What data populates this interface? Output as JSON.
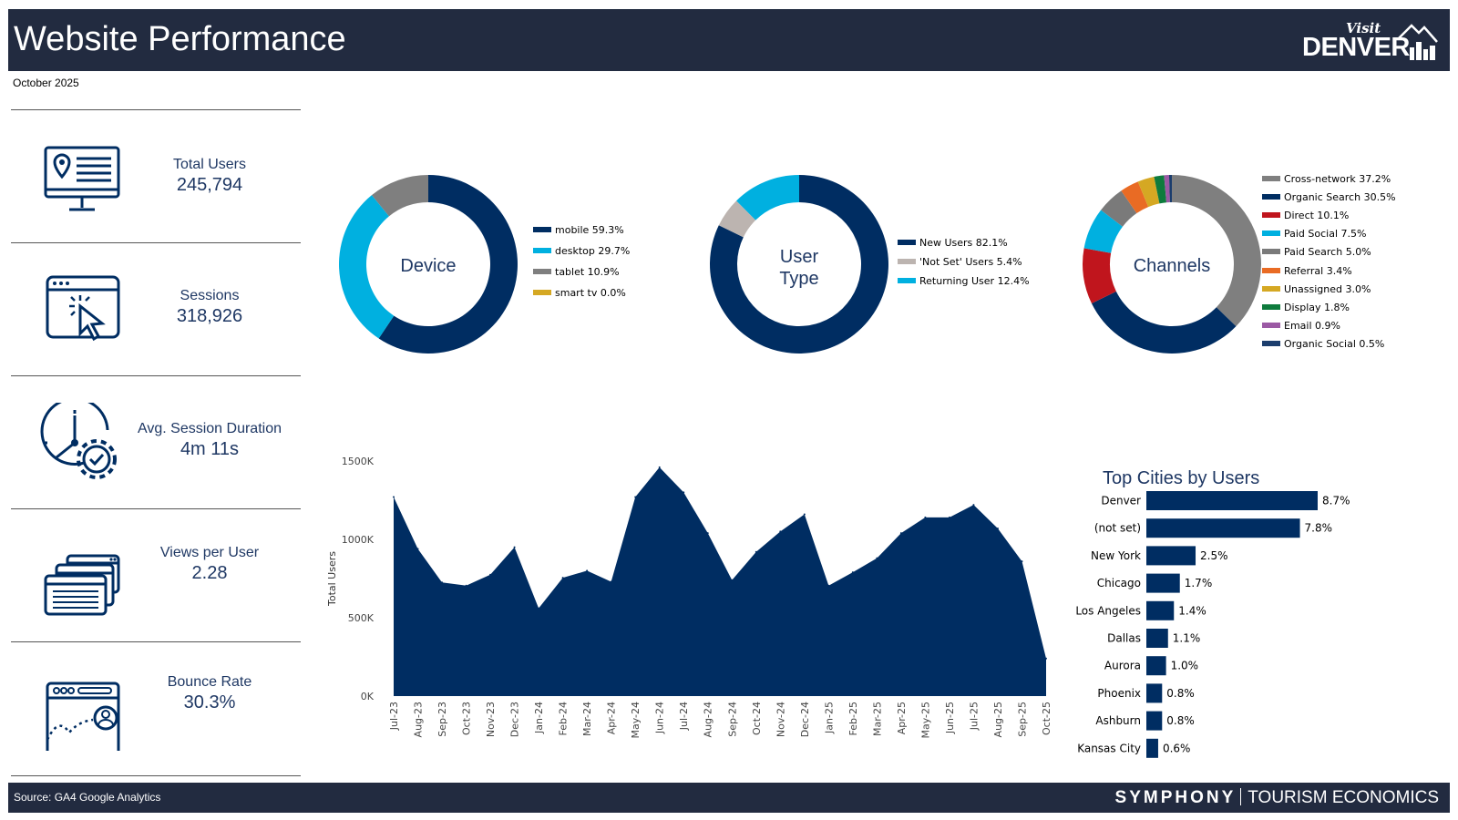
{
  "header": {
    "title": "Website Performance",
    "logo_top": "Visit",
    "logo_main": "DENVER"
  },
  "subtitle": "October 2025",
  "footer": {
    "source": "Source: GA4 Google Analytics",
    "brand_a": "SYMPHONY",
    "brand_b": "TOURISM ECONOMICS"
  },
  "kpis": [
    {
      "label": "Total Users",
      "value": "245,794",
      "icon": "monitor-location-icon"
    },
    {
      "label": "Sessions",
      "value": "318,926",
      "icon": "browser-click-icon"
    },
    {
      "label": "Avg. Session Duration",
      "value": "4m 11s",
      "icon": "clock-gear-icon"
    },
    {
      "label": "Views per User",
      "value": "2.28",
      "icon": "stacked-windows-icon"
    },
    {
      "label": "Bounce Rate",
      "value": "30.3%",
      "icon": "browser-user-icon"
    }
  ],
  "colors": {
    "navy": "#002d62",
    "header": "#222b40",
    "text": "#1f3864"
  },
  "chart_data": [
    {
      "type": "pie",
      "title": "Device",
      "legend": [
        "mobile 59.3%",
        "desktop 29.7%",
        "tablet 10.9%",
        "smart tv 0.0%"
      ],
      "categories": [
        "mobile",
        "desktop",
        "tablet",
        "smart tv"
      ],
      "values": [
        59.3,
        29.7,
        10.9,
        0.0
      ],
      "colors": [
        "#002d62",
        "#00b0e0",
        "#7f7f7f",
        "#d5a823"
      ]
    },
    {
      "type": "pie",
      "title": "User Type",
      "title_lines": [
        "User",
        "Type"
      ],
      "legend": [
        "New Users 82.1%",
        "'Not Set' Users 5.4%",
        "Returning User 12.4%"
      ],
      "categories": [
        "New Users",
        "'Not Set' Users",
        "Returning User"
      ],
      "values": [
        82.1,
        5.4,
        12.4
      ],
      "colors": [
        "#002d62",
        "#bcb4b0",
        "#00b0e0"
      ]
    },
    {
      "type": "pie",
      "title": "Channels",
      "legend": [
        "Cross-network 37.2%",
        "Organic Search 30.5%",
        "Direct 10.1%",
        "Paid Social 7.5%",
        "Paid Search 5.0%",
        "Referral 3.4%",
        "Unassigned 3.0%",
        "Display 1.8%",
        "Email 0.9%",
        "Organic Social 0.5%"
      ],
      "categories": [
        "Cross-network",
        "Organic Search",
        "Direct",
        "Paid Social",
        "Paid Search",
        "Referral",
        "Unassigned",
        "Display",
        "Email",
        "Organic Social"
      ],
      "values": [
        37.2,
        30.5,
        10.1,
        7.5,
        5.0,
        3.4,
        3.0,
        1.8,
        0.9,
        0.5
      ],
      "colors": [
        "#7f7f7f",
        "#002d62",
        "#c0151d",
        "#00b0e0",
        "#7a7a7a",
        "#e96b24",
        "#d5a823",
        "#0e7b3d",
        "#9b59a4",
        "#1b3d6d"
      ]
    },
    {
      "type": "area",
      "ylabel": "Total Users",
      "yticks": [
        "1500K",
        "1000K",
        "500K",
        "0K"
      ],
      "ylim": [
        0,
        1500000
      ],
      "x": [
        "Jul-23",
        "Aug-23",
        "Sep-23",
        "Oct-23",
        "Nov-23",
        "Dec-23",
        "Jan-24",
        "Feb-24",
        "Mar-24",
        "Apr-24",
        "May-24",
        "Jun-24",
        "Jul-24",
        "Aug-24",
        "Sep-24",
        "Oct-24",
        "Nov-24",
        "Dec-24",
        "Jan-25",
        "Feb-25",
        "Mar-25",
        "Apr-25",
        "May-25",
        "Jun-25",
        "Jul-25",
        "Aug-25",
        "Sep-25",
        "Oct-25"
      ],
      "values": [
        1270000,
        940000,
        725000,
        705000,
        775000,
        950000,
        560000,
        755000,
        800000,
        730000,
        1270000,
        1460000,
        1300000,
        1040000,
        740000,
        920000,
        1050000,
        1160000,
        705000,
        790000,
        880000,
        1040000,
        1140000,
        1140000,
        1220000,
        1070000,
        860000,
        240000
      ]
    },
    {
      "type": "bar",
      "orientation": "horizontal",
      "title": "Top Cities by Users",
      "categories": [
        "Denver",
        "(not set)",
        "New York",
        "Chicago",
        "Los Angeles",
        "Dallas",
        "Aurora",
        "Phoenix",
        "Ashburn",
        "Kansas City"
      ],
      "values": [
        8.7,
        7.8,
        2.5,
        1.7,
        1.4,
        1.1,
        1.0,
        0.8,
        0.8,
        0.6
      ],
      "labels": [
        "8.7%",
        "7.8%",
        "2.5%",
        "1.7%",
        "1.4%",
        "1.1%",
        "1.0%",
        "0.8%",
        "0.8%",
        "0.6%"
      ]
    }
  ]
}
